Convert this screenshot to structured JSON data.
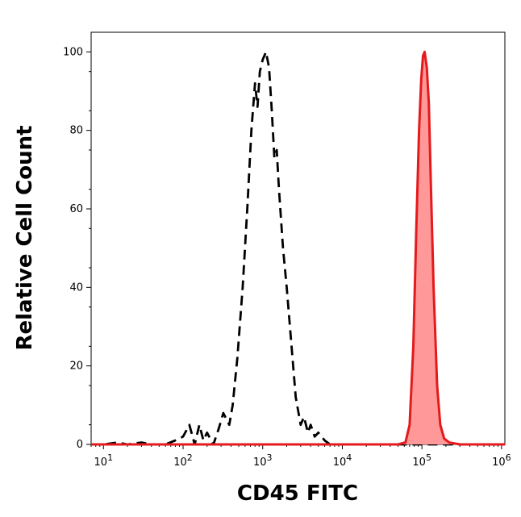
{
  "chart_data": {
    "type": "line",
    "title": "",
    "xlabel": "CD45 FITC",
    "ylabel": "Relative Cell Count",
    "x_scale": "log",
    "xlim": [
      7,
      1100000
    ],
    "ylim": [
      0,
      105
    ],
    "x_ticks": [
      {
        "value": 10,
        "base": "10",
        "exp": "1"
      },
      {
        "value": 100,
        "base": "10",
        "exp": "2"
      },
      {
        "value": 1000,
        "base": "10",
        "exp": "3"
      },
      {
        "value": 10000,
        "base": "10",
        "exp": "4"
      },
      {
        "value": 100000,
        "base": "10",
        "exp": "5"
      },
      {
        "value": 1000000,
        "base": "10",
        "exp": "6"
      }
    ],
    "y_ticks": [
      "0",
      "20",
      "40",
      "60",
      "80",
      "100"
    ],
    "grid": false,
    "legend": "none",
    "series": [
      {
        "style": "dashed",
        "color": "#000000",
        "fill": "none",
        "points": [
          [
            7,
            0
          ],
          [
            10,
            0
          ],
          [
            15,
            0.5
          ],
          [
            20,
            0
          ],
          [
            30,
            0.5
          ],
          [
            40,
            0
          ],
          [
            60,
            0
          ],
          [
            80,
            1
          ],
          [
            100,
            2
          ],
          [
            120,
            5
          ],
          [
            140,
            0
          ],
          [
            160,
            5
          ],
          [
            180,
            1
          ],
          [
            200,
            3
          ],
          [
            240,
            0
          ],
          [
            280,
            4
          ],
          [
            320,
            8
          ],
          [
            380,
            5
          ],
          [
            420,
            10
          ],
          [
            480,
            22
          ],
          [
            560,
            40
          ],
          [
            640,
            60
          ],
          [
            720,
            80
          ],
          [
            800,
            92
          ],
          [
            860,
            86
          ],
          [
            920,
            95
          ],
          [
            1000,
            98
          ],
          [
            1100,
            100
          ],
          [
            1200,
            96
          ],
          [
            1300,
            85
          ],
          [
            1400,
            73
          ],
          [
            1500,
            75
          ],
          [
            1600,
            65
          ],
          [
            1800,
            50
          ],
          [
            2000,
            40
          ],
          [
            2300,
            25
          ],
          [
            2600,
            12
          ],
          [
            3000,
            5
          ],
          [
            3300,
            7
          ],
          [
            3700,
            3
          ],
          [
            4000,
            5
          ],
          [
            4500,
            2
          ],
          [
            5000,
            3
          ],
          [
            6000,
            1
          ],
          [
            7000,
            0
          ],
          [
            10000,
            0
          ],
          [
            30000,
            0
          ],
          [
            100000,
            0
          ],
          [
            1100000,
            0
          ]
        ]
      },
      {
        "style": "solid",
        "color": "#e41a1c",
        "fill": "#ff9999",
        "points": [
          [
            7,
            0
          ],
          [
            10000,
            0
          ],
          [
            50000,
            0
          ],
          [
            62000,
            0.5
          ],
          [
            70000,
            5
          ],
          [
            78000,
            25
          ],
          [
            85000,
            55
          ],
          [
            92000,
            80
          ],
          [
            98000,
            93
          ],
          [
            103000,
            99
          ],
          [
            108000,
            100
          ],
          [
            115000,
            96
          ],
          [
            122000,
            87
          ],
          [
            130000,
            65
          ],
          [
            140000,
            40
          ],
          [
            155000,
            15
          ],
          [
            170000,
            5
          ],
          [
            190000,
            1.5
          ],
          [
            220000,
            0.5
          ],
          [
            300000,
            0
          ],
          [
            1100000,
            0
          ]
        ]
      }
    ]
  }
}
